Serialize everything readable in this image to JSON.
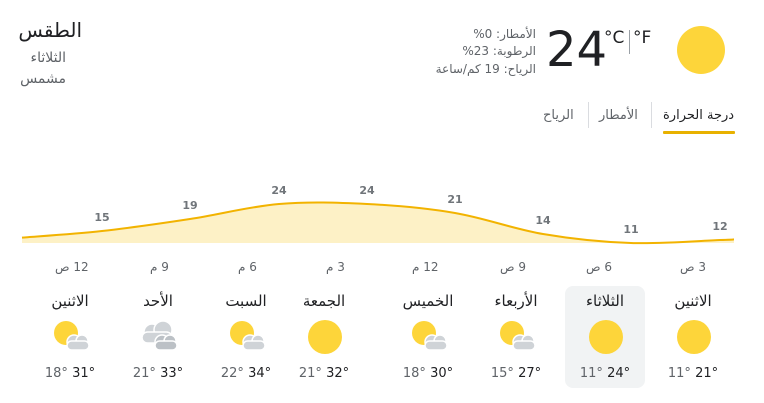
{
  "header": {
    "title": "الطقس",
    "day": "الثلاثاء",
    "condition": "مشمس",
    "temperature": "24",
    "unit_c": "°C",
    "unit_f": "°F",
    "precipitation": "الأمطار: 0%",
    "humidity": "الرطوبة: 23%",
    "wind": "الرياح: 19 كم/ساعة",
    "icon": "sun-icon"
  },
  "tabs": [
    {
      "label": "درجة الحرارة",
      "active": true
    },
    {
      "label": "الأمطار",
      "active": false
    },
    {
      "label": "الرياح",
      "active": false
    }
  ],
  "chart_data": {
    "type": "area",
    "x": [
      "3 ص",
      "6 ص",
      "9 ص",
      "12 م",
      "3 م",
      "6 م",
      "9 م",
      "12 ص"
    ],
    "values": [
      12,
      11,
      14,
      21,
      24,
      24,
      19,
      15
    ],
    "labels": [
      "12",
      "11",
      "14",
      "21",
      "24",
      "24",
      "19",
      "15"
    ],
    "direction": "right-to-left",
    "colors": {
      "line": "#f2b300",
      "fill": "#fdf1c6"
    }
  },
  "days": [
    {
      "name": "الاثنين",
      "icon": "sun-icon",
      "high": "21°",
      "low": "11°",
      "selected": false
    },
    {
      "name": "الثلاثاء",
      "icon": "sun-icon",
      "high": "24°",
      "low": "11°",
      "selected": true
    },
    {
      "name": "الأربعاء",
      "icon": "partly-cloudy-icon",
      "high": "27°",
      "low": "15°",
      "selected": false
    },
    {
      "name": "الخميس",
      "icon": "partly-cloudy-icon",
      "high": "30°",
      "low": "18°",
      "selected": false
    },
    {
      "name": "الجمعة",
      "icon": "sun-icon",
      "high": "32°",
      "low": "21°",
      "selected": false
    },
    {
      "name": "السبت",
      "icon": "partly-cloudy-icon",
      "high": "34°",
      "low": "22°",
      "selected": false
    },
    {
      "name": "الأحد",
      "icon": "cloudy-icon",
      "high": "33°",
      "low": "21°",
      "selected": false
    },
    {
      "name": "الاثنين",
      "icon": "partly-cloudy-icon",
      "high": "31°",
      "low": "18°",
      "selected": false
    }
  ]
}
